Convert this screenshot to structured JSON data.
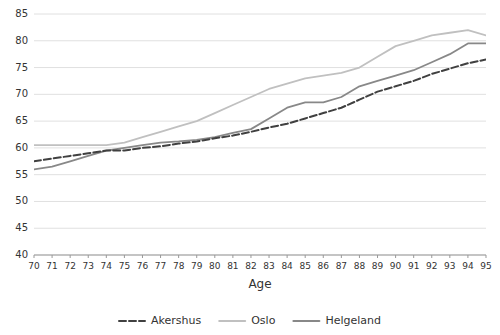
{
  "chart_data": {
    "type": "line",
    "x_label": "Age",
    "x": [
      70,
      71,
      72,
      73,
      74,
      75,
      76,
      77,
      78,
      79,
      80,
      81,
      82,
      83,
      84,
      85,
      86,
      87,
      88,
      89,
      90,
      91,
      92,
      93,
      94,
      95
    ],
    "series": [
      {
        "name": "Akershus",
        "color": "#404040",
        "line_style": "dashed",
        "values": [
          57.5,
          58.0,
          58.5,
          59.0,
          59.5,
          59.5,
          60.0,
          60.3,
          60.8,
          61.2,
          61.8,
          62.3,
          63.0,
          63.8,
          64.5,
          65.5,
          66.5,
          67.5,
          69.0,
          70.5,
          71.5,
          72.5,
          73.8,
          74.8,
          75.8,
          76.5
        ]
      },
      {
        "name": "Oslo",
        "color": "#c0c0c0",
        "line_style": "solid",
        "values": [
          60.5,
          60.5,
          60.5,
          60.5,
          60.5,
          61.0,
          62.0,
          63.0,
          64.0,
          65.0,
          66.5,
          68.0,
          69.5,
          71.0,
          72.0,
          73.0,
          73.5,
          74.0,
          75.0,
          77.0,
          79.0,
          80.0,
          81.0,
          81.5,
          82.0,
          81.0
        ]
      },
      {
        "name": "Helgeland",
        "color": "#888888",
        "line_style": "solid",
        "values": [
          56.0,
          56.5,
          57.5,
          58.5,
          59.5,
          60.0,
          60.5,
          61.0,
          61.2,
          61.5,
          62.0,
          62.8,
          63.5,
          65.5,
          67.5,
          68.5,
          68.5,
          69.5,
          71.5,
          72.5,
          73.5,
          74.5,
          76.0,
          77.5,
          79.5,
          79.5
        ]
      }
    ],
    "xlim": [
      70,
      95
    ],
    "xticks": [
      70,
      71,
      72,
      73,
      74,
      75,
      76,
      77,
      78,
      79,
      80,
      81,
      82,
      83,
      84,
      85,
      86,
      87,
      88,
      89,
      90,
      91,
      92,
      93,
      94,
      95
    ],
    "ylim": [
      40,
      85
    ],
    "yticks": [
      40,
      45,
      50,
      55,
      60,
      65,
      70,
      75,
      80,
      85
    ],
    "grid": true,
    "legend": "bottom"
  }
}
